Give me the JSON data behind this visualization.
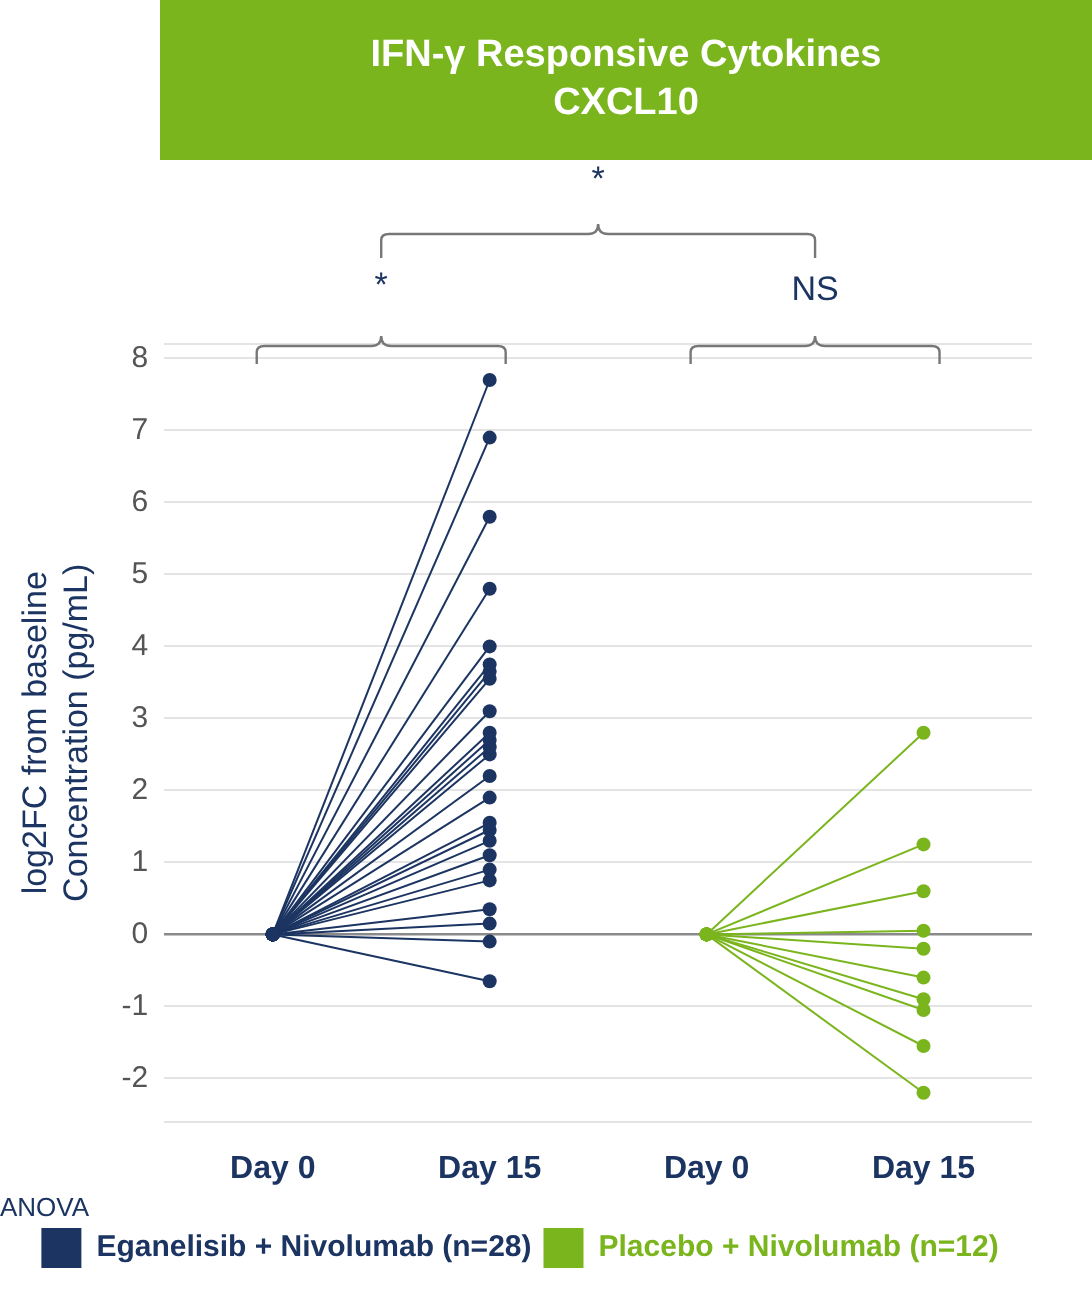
{
  "chart_data": {
    "type": "line",
    "title": "IFN-γ Responsive Cytokines",
    "subtitle": "CXCL10",
    "ylabel": "log2FC from baseline Concentration (pg/mL)",
    "categories": [
      "Day 0",
      "Day 15",
      "Day 0",
      "Day 15"
    ],
    "ylim": [
      -2.6,
      8.2
    ],
    "yticks": [
      {
        "value": -2.6,
        "label": null
      },
      -2,
      -1,
      0,
      1,
      2,
      3,
      4,
      5,
      6,
      7,
      8,
      {
        "value": 8.2,
        "label": null
      }
    ],
    "grid": "y",
    "marker": "circle",
    "legend": "bottom",
    "annotations": [
      "*",
      "*",
      "NS",
      "ANOVA"
    ],
    "series": [
      {
        "name": "Eganelisib + Nivolumab (n=28)",
        "color": "#1b3461",
        "values": [
          0,
          7.7,
          null,
          null
        ]
      },
      {
        "color": "#1b3461",
        "values": [
          0,
          6.9,
          null,
          null
        ]
      },
      {
        "color": "#1b3461",
        "values": [
          0,
          5.8,
          null,
          null
        ]
      },
      {
        "color": "#1b3461",
        "values": [
          0,
          4.8,
          null,
          null
        ]
      },
      {
        "color": "#1b3461",
        "values": [
          0,
          4.0,
          null,
          null
        ]
      },
      {
        "color": "#1b3461",
        "values": [
          0,
          3.75,
          null,
          null
        ]
      },
      {
        "color": "#1b3461",
        "values": [
          0,
          3.65,
          null,
          null
        ]
      },
      {
        "color": "#1b3461",
        "values": [
          0,
          3.55,
          null,
          null
        ]
      },
      {
        "color": "#1b3461",
        "values": [
          0,
          3.1,
          null,
          null
        ]
      },
      {
        "color": "#1b3461",
        "values": [
          0,
          2.8,
          null,
          null
        ]
      },
      {
        "color": "#1b3461",
        "values": [
          0,
          2.7,
          null,
          null
        ]
      },
      {
        "color": "#1b3461",
        "values": [
          0,
          2.6,
          null,
          null
        ]
      },
      {
        "color": "#1b3461",
        "values": [
          0,
          2.5,
          null,
          null
        ]
      },
      {
        "color": "#1b3461",
        "values": [
          0,
          2.2,
          null,
          null
        ]
      },
      {
        "color": "#1b3461",
        "values": [
          0,
          1.9,
          null,
          null
        ]
      },
      {
        "color": "#1b3461",
        "values": [
          0,
          1.55,
          null,
          null
        ]
      },
      {
        "color": "#1b3461",
        "values": [
          0,
          1.45,
          null,
          null
        ]
      },
      {
        "color": "#1b3461",
        "values": [
          0,
          1.3,
          null,
          null
        ]
      },
      {
        "color": "#1b3461",
        "values": [
          0,
          1.1,
          null,
          null
        ]
      },
      {
        "color": "#1b3461",
        "values": [
          0,
          0.9,
          null,
          null
        ]
      },
      {
        "color": "#1b3461",
        "values": [
          0,
          0.75,
          null,
          null
        ]
      },
      {
        "color": "#1b3461",
        "values": [
          0,
          0.35,
          null,
          null
        ]
      },
      {
        "color": "#1b3461",
        "values": [
          0,
          0.15,
          null,
          null
        ]
      },
      {
        "color": "#1b3461",
        "values": [
          0,
          -0.1,
          null,
          null
        ]
      },
      {
        "color": "#1b3461",
        "values": [
          0,
          -0.65,
          null,
          null
        ]
      },
      {
        "name": "Placebo + Nivolumab (n=12)",
        "color": "#7ab51d",
        "values": [
          null,
          null,
          0,
          2.8
        ]
      },
      {
        "color": "#7ab51d",
        "values": [
          null,
          null,
          0,
          1.25
        ]
      },
      {
        "color": "#7ab51d",
        "values": [
          null,
          null,
          0,
          0.6
        ]
      },
      {
        "color": "#7ab51d",
        "values": [
          null,
          null,
          0,
          0.05
        ]
      },
      {
        "color": "#7ab51d",
        "values": [
          null,
          null,
          0,
          -0.2
        ]
      },
      {
        "color": "#7ab51d",
        "values": [
          null,
          null,
          0,
          -0.6
        ]
      },
      {
        "color": "#7ab51d",
        "values": [
          null,
          null,
          0,
          -0.9
        ]
      },
      {
        "color": "#7ab51d",
        "values": [
          null,
          null,
          0,
          -1.05
        ]
      },
      {
        "color": "#7ab51d",
        "values": [
          null,
          null,
          0,
          -1.55
        ]
      },
      {
        "color": "#7ab51d",
        "values": [
          null,
          null,
          0,
          -2.2
        ]
      }
    ]
  }
}
